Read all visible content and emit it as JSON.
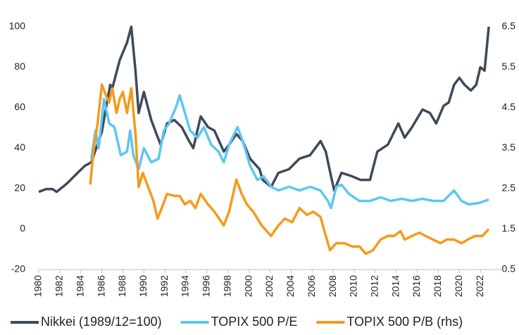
{
  "chart_data": {
    "type": "line",
    "xlim": [
      1980,
      2024
    ],
    "xticks": [
      1980,
      1982,
      1984,
      1986,
      1988,
      1990,
      1992,
      1994,
      1996,
      1998,
      2000,
      2002,
      2004,
      2006,
      2008,
      2010,
      2012,
      2014,
      2016,
      2018,
      2020,
      2022
    ],
    "ylim": [
      -20,
      100
    ],
    "yticks": [
      -20,
      0,
      20,
      40,
      60,
      80,
      100
    ],
    "y2lim": [
      0.5,
      6.5
    ],
    "y2ticks": [
      0.5,
      1.5,
      2.5,
      3.5,
      4.5,
      5.5,
      6.5
    ],
    "grid": false,
    "legend": "bottom",
    "series": [
      {
        "name": "Nikkei (1989/12=100)",
        "color": "#3e4a5b",
        "x": [
          1980.0,
          1980.7,
          1981.3,
          1981.7,
          1982.7,
          1983.7,
          1984.4,
          1985.0,
          1986.0,
          1986.4,
          1986.8,
          1987.0,
          1987.7,
          1988.4,
          1988.8,
          1989.2,
          1989.5,
          1990.0,
          1990.7,
          1991.2,
          1991.6,
          1992.2,
          1992.9,
          1993.6,
          1994.3,
          1994.7,
          1995.4,
          1996.1,
          1996.7,
          1997.6,
          1998.1,
          1998.8,
          1999.4,
          2000.1,
          2001.0,
          2001.3,
          2002.1,
          2002.8,
          2003.8,
          2004.8,
          2005.8,
          2006.8,
          2007.3,
          2007.8,
          2008.1,
          2008.8,
          2009.8,
          2010.6,
          2011.5,
          2012.2,
          2013.2,
          2014.2,
          2014.8,
          2015.5,
          2016.5,
          2017.2,
          2017.8,
          2018.5,
          2019.0,
          2019.5,
          2020.0,
          2020.5,
          2021.1,
          2021.6,
          2022.0,
          2022.4,
          2022.8
        ],
        "values": [
          18.4,
          19.8,
          19.8,
          18.4,
          22.6,
          27.8,
          31.3,
          33,
          48,
          60,
          71.3,
          69.6,
          83.5,
          92.2,
          100,
          78.3,
          57.4,
          67.8,
          53.9,
          47,
          41.7,
          52.2,
          53.9,
          50.4,
          43.5,
          40,
          55.7,
          50.4,
          48.7,
          38.3,
          41.7,
          47,
          43.5,
          34.8,
          29.6,
          24.3,
          20.9,
          27.8,
          29.6,
          34.8,
          36.5,
          43.5,
          38.3,
          26.1,
          19.1,
          27.8,
          26.1,
          24.3,
          24.3,
          38.3,
          41.7,
          52.2,
          45.2,
          50.4,
          59.1,
          57.4,
          52.2,
          60.9,
          62.6,
          71.3,
          74.8,
          71.3,
          68.5,
          71.3,
          80,
          78.3,
          100
        ]
      },
      {
        "name": "TOPIX 500 P/E",
        "color": "#5ec6f2",
        "x": [
          1985.0,
          1985.4,
          1985.7,
          1986.2,
          1986.7,
          1987.2,
          1987.8,
          1988.4,
          1988.7,
          1989.0,
          1989.5,
          1990.0,
          1990.7,
          1991.4,
          1991.9,
          1992.4,
          1993.1,
          1993.4,
          1993.9,
          1994.4,
          1995.1,
          1995.7,
          1996.4,
          1997.1,
          1997.6,
          1998.1,
          1998.9,
          1999.4,
          2000.1,
          2000.8,
          2001.4,
          2002.1,
          2002.8,
          2003.8,
          2004.8,
          2005.8,
          2006.8,
          2007.5,
          2007.8,
          2008.3,
          2008.8,
          2009.5,
          2010.5,
          2011.5,
          2012.5,
          2013.5,
          2014.5,
          2015.5,
          2016.5,
          2017.5,
          2018.5,
          2019.5,
          2020.2,
          2020.9,
          2021.9,
          2022.8
        ],
        "values": [
          34.8,
          48.7,
          40,
          64.3,
          52.2,
          50.4,
          36.5,
          38.3,
          48.7,
          36.5,
          29.6,
          40,
          33,
          34.8,
          48.7,
          52.2,
          60.9,
          66.1,
          57.4,
          48.7,
          45.2,
          50.4,
          41.7,
          38.3,
          33,
          41.7,
          50.4,
          43.5,
          31.3,
          24.3,
          26.1,
          20.9,
          19.1,
          20.9,
          19.1,
          20.9,
          19.1,
          13.9,
          10.4,
          20.9,
          21.9,
          17.4,
          13.9,
          13.9,
          15.7,
          13.9,
          15,
          13.9,
          15,
          13.9,
          13.9,
          19.1,
          13.9,
          12.2,
          12.9,
          14.6
        ]
      },
      {
        "name": "TOPIX 500 P/B (rhs)",
        "color": "#f59a1b",
        "axis": "y2",
        "x": [
          1984.9,
          1985.2,
          1985.6,
          1986.0,
          1986.4,
          1986.7,
          1987.0,
          1987.4,
          1987.7,
          1988.0,
          1988.4,
          1988.8,
          1989.2,
          1989.5,
          1989.9,
          1990.4,
          1990.9,
          1991.3,
          1991.7,
          1992.2,
          1992.9,
          1993.4,
          1993.9,
          1994.4,
          1994.9,
          1995.4,
          1996.1,
          1996.7,
          1997.6,
          1998.1,
          1998.8,
          1999.3,
          1999.8,
          2000.4,
          2001.2,
          2002.1,
          2002.8,
          2003.4,
          2004.1,
          2004.8,
          2005.5,
          2006.1,
          2006.8,
          2007.3,
          2007.7,
          2008.3,
          2009.1,
          2009.8,
          2010.5,
          2011.1,
          2011.8,
          2012.5,
          2013.2,
          2013.8,
          2014.4,
          2014.8,
          2015.5,
          2016.2,
          2016.8,
          2017.5,
          2018.2,
          2018.8,
          2019.5,
          2020.2,
          2020.8,
          2021.5,
          2022.2,
          2022.8
        ],
        "values": [
          2.6,
          3.41,
          4.11,
          5.07,
          4.8,
          4.63,
          4.98,
          4.37,
          4.72,
          4.89,
          4.37,
          4.98,
          3.85,
          2.54,
          2.89,
          2.54,
          2.2,
          1.76,
          2.02,
          2.37,
          2.32,
          2.32,
          2.11,
          2.2,
          2.02,
          2.37,
          2.11,
          1.93,
          1.59,
          1.93,
          2.72,
          2.37,
          2.11,
          1.93,
          1.59,
          1.33,
          1.59,
          1.76,
          1.67,
          2.02,
          1.85,
          1.93,
          1.8,
          1.33,
          0.98,
          1.15,
          1.15,
          1.07,
          1.07,
          0.89,
          0.98,
          1.24,
          1.33,
          1.33,
          1.45,
          1.24,
          1.33,
          1.41,
          1.33,
          1.24,
          1.15,
          1.24,
          1.24,
          1.15,
          1.24,
          1.33,
          1.33,
          1.5
        ]
      }
    ]
  }
}
